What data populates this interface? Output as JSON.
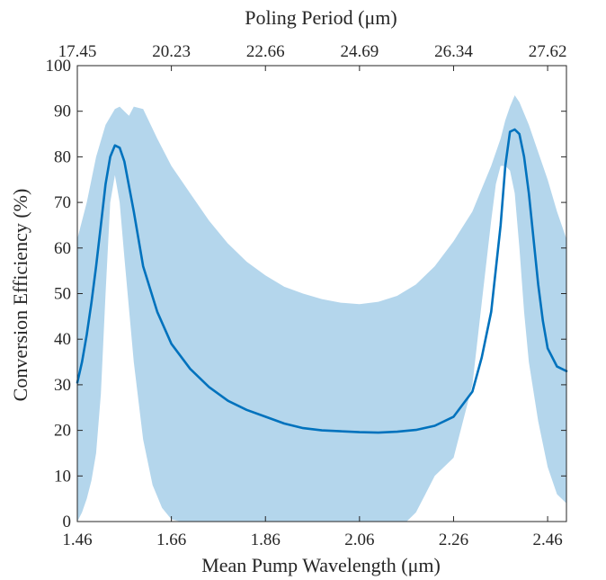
{
  "chart_data": {
    "type": "area",
    "title": "",
    "xlabel": "Mean Pump Wavelength (μm)",
    "x2label": "Poling Period (μm)",
    "ylabel": "Conversion Efficiency (%)",
    "xlim": [
      1.46,
      2.5
    ],
    "ylim": [
      0,
      100
    ],
    "x_ticks": [
      1.46,
      1.66,
      1.86,
      2.06,
      2.26,
      2.46
    ],
    "x_tick_labels": [
      "1.46",
      "1.66",
      "1.86",
      "2.06",
      "2.26",
      "2.46"
    ],
    "y_ticks": [
      0,
      10,
      20,
      30,
      40,
      50,
      60,
      70,
      80,
      90,
      100
    ],
    "y_tick_labels": [
      "0",
      "10",
      "20",
      "30",
      "40",
      "50",
      "60",
      "70",
      "80",
      "90",
      "100"
    ],
    "x2_ticks": [
      1.46,
      1.66,
      1.86,
      2.06,
      2.26,
      2.46
    ],
    "x2_tick_labels": [
      "17.45",
      "20.23",
      "22.66",
      "24.69",
      "26.34",
      "27.62"
    ],
    "grid": false,
    "colors": {
      "mean_line": "#0072BD",
      "band": "#B4D6EC",
      "axes": "#262626"
    },
    "mean": {
      "x": [
        1.46,
        1.47,
        1.48,
        1.49,
        1.5,
        1.51,
        1.52,
        1.53,
        1.54,
        1.55,
        1.56,
        1.58,
        1.6,
        1.63,
        1.66,
        1.7,
        1.74,
        1.78,
        1.82,
        1.86,
        1.9,
        1.94,
        1.98,
        2.02,
        2.06,
        2.1,
        2.14,
        2.18,
        2.22,
        2.26,
        2.3,
        2.32,
        2.34,
        2.36,
        2.37,
        2.38,
        2.39,
        2.4,
        2.41,
        2.42,
        2.43,
        2.44,
        2.45,
        2.46,
        2.48,
        2.5
      ],
      "y": [
        30.5,
        35,
        41,
        48,
        56,
        65,
        74,
        80,
        82.5,
        82,
        79,
        68,
        56,
        46,
        39,
        33.5,
        29.5,
        26.5,
        24.5,
        23,
        21.5,
        20.5,
        20,
        19.8,
        19.6,
        19.5,
        19.7,
        20.1,
        21,
        23,
        28.5,
        36,
        46,
        65,
        78,
        85.5,
        86,
        85,
        80,
        72,
        62,
        52,
        44,
        38,
        34,
        33
      ]
    },
    "band_upper": {
      "x": [
        1.46,
        1.48,
        1.5,
        1.52,
        1.54,
        1.55,
        1.56,
        1.57,
        1.58,
        1.6,
        1.63,
        1.66,
        1.7,
        1.74,
        1.78,
        1.82,
        1.86,
        1.9,
        1.94,
        1.98,
        2.02,
        2.06,
        2.1,
        2.14,
        2.18,
        2.22,
        2.26,
        2.3,
        2.32,
        2.34,
        2.36,
        2.37,
        2.38,
        2.39,
        2.4,
        2.42,
        2.44,
        2.46,
        2.48,
        2.5
      ],
      "y": [
        62,
        70,
        80,
        87,
        90.5,
        91,
        90,
        89,
        91,
        90.5,
        84,
        78,
        72,
        66,
        61,
        57,
        54,
        51.5,
        50,
        48.8,
        48,
        47.7,
        48.2,
        49.5,
        52,
        56,
        61.5,
        68,
        73,
        78,
        84,
        88,
        91,
        93.5,
        92,
        87,
        81,
        75,
        68,
        62
      ]
    },
    "band_lower": {
      "x": [
        1.46,
        1.47,
        1.48,
        1.49,
        1.5,
        1.51,
        1.52,
        1.53,
        1.54,
        1.55,
        1.56,
        1.58,
        1.6,
        1.62,
        1.64,
        1.66,
        1.68,
        1.7,
        2.02,
        2.04,
        2.06,
        2.08,
        2.1,
        2.12,
        2.14,
        2.16,
        2.18,
        2.2,
        2.22,
        2.26,
        2.3,
        2.32,
        2.34,
        2.35,
        2.36,
        2.37,
        2.38,
        2.39,
        2.4,
        2.41,
        2.42,
        2.44,
        2.46,
        2.48,
        2.5
      ],
      "y": [
        0,
        2,
        5,
        9,
        15,
        28,
        50,
        70,
        76,
        70,
        58,
        35,
        18,
        8,
        3,
        0.5,
        0,
        0,
        0,
        0,
        0,
        0,
        0,
        0,
        0,
        0,
        2,
        6,
        10,
        14,
        30,
        48,
        66,
        74,
        78,
        78,
        77,
        72,
        60,
        46,
        35,
        22,
        12,
        6,
        4
      ]
    }
  }
}
